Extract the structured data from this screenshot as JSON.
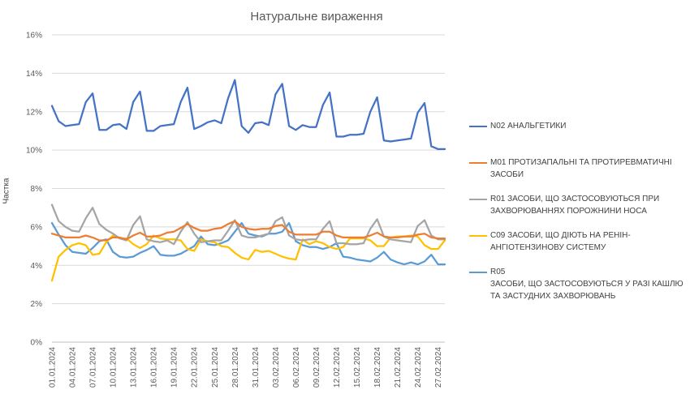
{
  "chart_data": {
    "type": "line",
    "title": "Натуральне вираження",
    "ylabel": "Частка",
    "xlabel": "",
    "ylim": [
      0,
      16
    ],
    "y_ticks": [
      "0%",
      "2%",
      "4%",
      "6%",
      "8%",
      "10%",
      "12%",
      "14%",
      "16%"
    ],
    "grid": "horizontal",
    "legend_position": "right",
    "x": [
      "01.01.2024",
      "02.01.2024",
      "03.01.2024",
      "04.01.2024",
      "05.01.2024",
      "06.01.2024",
      "07.01.2024",
      "08.01.2024",
      "09.01.2024",
      "10.01.2024",
      "11.01.2024",
      "12.01.2024",
      "13.01.2024",
      "14.01.2024",
      "15.01.2024",
      "16.01.2024",
      "17.01.2024",
      "18.01.2024",
      "19.01.2024",
      "20.01.2024",
      "21.01.2024",
      "22.01.2024",
      "23.01.2024",
      "24.01.2024",
      "25.01.2024",
      "26.01.2024",
      "27.01.2024",
      "28.01.2024",
      "29.01.2024",
      "30.01.2024",
      "31.01.2024",
      "01.02.2024",
      "02.02.2024",
      "03.02.2024",
      "04.02.2024",
      "05.02.2024",
      "06.02.2024",
      "07.02.2024",
      "08.02.2024",
      "09.02.2024",
      "10.02.2024",
      "11.02.2024",
      "12.02.2024",
      "13.02.2024",
      "14.02.2024",
      "15.02.2024",
      "16.02.2024",
      "17.02.2024",
      "18.02.2024",
      "19.02.2024",
      "20.02.2024",
      "21.02.2024",
      "22.02.2024",
      "23.02.2024",
      "24.02.2024",
      "25.02.2024",
      "26.02.2024",
      "27.02.2024",
      "28.02.2024"
    ],
    "x_tick_labels": [
      "01.01.2024",
      "04.01.2024",
      "07.01.2024",
      "10.01.2024",
      "13.01.2024",
      "16.01.2024",
      "19.01.2024",
      "22.01.2024",
      "25.01.2024",
      "28.01.2024",
      "31.01.2024",
      "03.02.2024",
      "06.02.2024",
      "09.02.2024",
      "12.02.2024",
      "15.02.2024",
      "18.02.2024",
      "21.02.2024",
      "24.02.2024",
      "27.02.2024"
    ],
    "series": [
      {
        "name": "N02 АНАЛЬГЕТИКИ",
        "color": "#4472c4",
        "values": [
          12.3,
          11.5,
          11.25,
          11.3,
          11.35,
          12.5,
          12.95,
          11.05,
          11.05,
          11.3,
          11.35,
          11.1,
          12.5,
          13.05,
          11.0,
          11.0,
          11.25,
          11.3,
          11.35,
          12.5,
          13.25,
          11.1,
          11.25,
          11.45,
          11.55,
          11.4,
          12.7,
          13.65,
          11.25,
          10.9,
          11.4,
          11.45,
          11.3,
          12.9,
          13.45,
          11.25,
          11.05,
          11.3,
          11.2,
          11.2,
          12.35,
          13.0,
          10.7,
          10.7,
          10.8,
          10.8,
          10.85,
          12.0,
          12.75,
          10.5,
          10.45,
          10.5,
          10.55,
          10.6,
          11.95,
          12.45,
          10.2,
          10.05,
          10.05
        ]
      },
      {
        "name": "M01 ПРОТИЗАПАЛЬНІ ТА ПРОТИРЕВМАТИЧНІ ЗАСОБИ",
        "color": "#ed7d31",
        "values": [
          5.65,
          5.55,
          5.45,
          5.45,
          5.45,
          5.55,
          5.45,
          5.3,
          5.3,
          5.45,
          5.45,
          5.35,
          5.55,
          5.7,
          5.5,
          5.5,
          5.55,
          5.7,
          5.75,
          5.95,
          6.15,
          5.95,
          5.8,
          5.8,
          5.9,
          5.95,
          6.15,
          6.3,
          6.0,
          5.9,
          5.85,
          5.9,
          5.9,
          6.05,
          6.1,
          5.75,
          5.6,
          5.6,
          5.6,
          5.6,
          5.75,
          5.75,
          5.55,
          5.45,
          5.45,
          5.45,
          5.45,
          5.55,
          5.7,
          5.5,
          5.45,
          5.45,
          5.5,
          5.5,
          5.6,
          5.65,
          5.45,
          5.4,
          5.4
        ]
      },
      {
        "name": "R01 ЗАСОБИ, ЩО ЗАСТОСОВУЮТЬСЯ ПРИ ЗАХВОРЮВАННЯХ ПОРОЖНИНИ НОСА",
        "color": "#a5a5a5",
        "values": [
          7.15,
          6.3,
          6.0,
          5.8,
          5.75,
          6.45,
          7.0,
          6.15,
          5.85,
          5.65,
          5.4,
          5.3,
          6.1,
          6.55,
          5.35,
          5.25,
          5.2,
          5.3,
          5.1,
          5.75,
          6.25,
          5.65,
          5.2,
          5.25,
          5.3,
          5.3,
          5.8,
          6.35,
          5.55,
          5.45,
          5.45,
          5.55,
          5.65,
          6.3,
          6.5,
          5.55,
          5.35,
          5.3,
          5.35,
          5.35,
          5.9,
          6.3,
          5.15,
          5.15,
          5.1,
          5.1,
          5.15,
          5.9,
          6.4,
          5.5,
          5.35,
          5.3,
          5.25,
          5.2,
          6.05,
          6.35,
          5.55,
          5.35,
          5.35
        ]
      },
      {
        "name": "C09 ЗАСОБИ, ЩО ДІЮТЬ НА РЕНІН-АНГІОТЕНЗИНОВУ СИСТЕМУ",
        "color": "#ffc000",
        "values": [
          3.2,
          4.45,
          4.8,
          5.05,
          5.15,
          5.05,
          4.55,
          4.6,
          5.2,
          5.55,
          5.4,
          5.4,
          5.1,
          4.9,
          5.1,
          5.55,
          5.4,
          5.35,
          5.35,
          5.3,
          4.85,
          4.75,
          5.35,
          5.25,
          5.2,
          5.0,
          4.95,
          4.65,
          4.4,
          4.3,
          4.8,
          4.7,
          4.75,
          4.6,
          4.45,
          4.35,
          4.3,
          5.35,
          5.1,
          5.25,
          5.15,
          4.95,
          4.85,
          4.95,
          5.4,
          5.4,
          5.4,
          5.3,
          5.0,
          5.0,
          5.45,
          5.5,
          5.5,
          5.55,
          5.5,
          5.05,
          4.85,
          4.85,
          5.3
        ]
      },
      {
        "name": "R05\nЗАСОБИ, ЩО ЗАСТОСОВУЮТЬСЯ У РАЗІ КАШЛЮ ТА ЗАСТУДНИХ ЗАХВОРЮВАНЬ",
        "color": "#5b9bd5",
        "values": [
          6.2,
          5.6,
          5.05,
          4.7,
          4.65,
          4.6,
          4.9,
          5.25,
          5.35,
          4.7,
          4.45,
          4.4,
          4.45,
          4.65,
          4.8,
          5.0,
          4.55,
          4.5,
          4.5,
          4.6,
          4.8,
          5.0,
          5.5,
          5.1,
          5.05,
          5.15,
          5.3,
          5.75,
          6.2,
          5.65,
          5.55,
          5.5,
          5.65,
          5.65,
          5.75,
          6.2,
          5.25,
          5.05,
          4.95,
          4.95,
          4.85,
          4.95,
          5.15,
          4.45,
          4.4,
          4.3,
          4.25,
          4.2,
          4.4,
          4.7,
          4.3,
          4.15,
          4.05,
          4.15,
          4.05,
          4.2,
          4.55,
          4.05,
          4.05
        ]
      }
    ]
  }
}
